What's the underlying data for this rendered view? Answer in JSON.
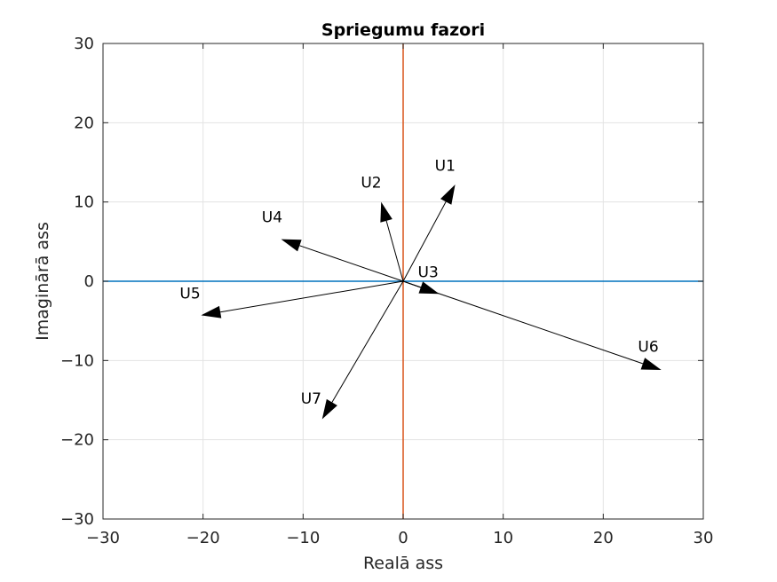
{
  "chart_data": {
    "type": "line",
    "title": "Spriegumu fazori",
    "xlabel": "Realā ass",
    "ylabel": "Imaginārā ass",
    "xlim": [
      -30,
      30
    ],
    "ylim": [
      -30,
      30
    ],
    "xticks": [
      -30,
      -20,
      -10,
      0,
      10,
      20,
      30
    ],
    "yticks": [
      -30,
      -20,
      -10,
      0,
      10,
      20,
      30
    ],
    "xtick_labels": [
      "−30",
      "−20",
      "−10",
      "0",
      "10",
      "20",
      "30"
    ],
    "ytick_labels": [
      "−30",
      "−20",
      "−10",
      "0",
      "10",
      "20",
      "30"
    ],
    "grid": true,
    "reference_lines": [
      {
        "orientation": "horizontal",
        "value": 0,
        "color": "#0072BD"
      },
      {
        "orientation": "vertical",
        "value": 0,
        "color": "#D95319"
      }
    ],
    "series": [
      {
        "name": "U1",
        "x": [
          0,
          5.2
        ],
        "y": [
          0,
          12.2
        ],
        "label_at": [
          4.2,
          14.6
        ]
      },
      {
        "name": "U2",
        "x": [
          0,
          -2.2
        ],
        "y": [
          0,
          10.0
        ],
        "label_at": [
          -3.2,
          12.5
        ]
      },
      {
        "name": "U3",
        "x": [
          0,
          3.6
        ],
        "y": [
          0,
          -1.6
        ],
        "label_at": [
          2.5,
          1.2
        ]
      },
      {
        "name": "U4",
        "x": [
          0,
          -12.2
        ],
        "y": [
          0,
          5.3
        ],
        "label_at": [
          -13.1,
          8.1
        ]
      },
      {
        "name": "U5",
        "x": [
          0,
          -20.2
        ],
        "y": [
          0,
          -4.3
        ],
        "label_at": [
          -21.3,
          -1.5
        ]
      },
      {
        "name": "U6",
        "x": [
          0,
          25.8
        ],
        "y": [
          0,
          -11.2
        ],
        "label_at": [
          24.5,
          -8.2
        ]
      },
      {
        "name": "U7",
        "x": [
          0,
          -8.1
        ],
        "y": [
          0,
          -17.4
        ],
        "label_at": [
          -9.2,
          -14.8
        ]
      }
    ],
    "arrow_color": "#000000"
  }
}
